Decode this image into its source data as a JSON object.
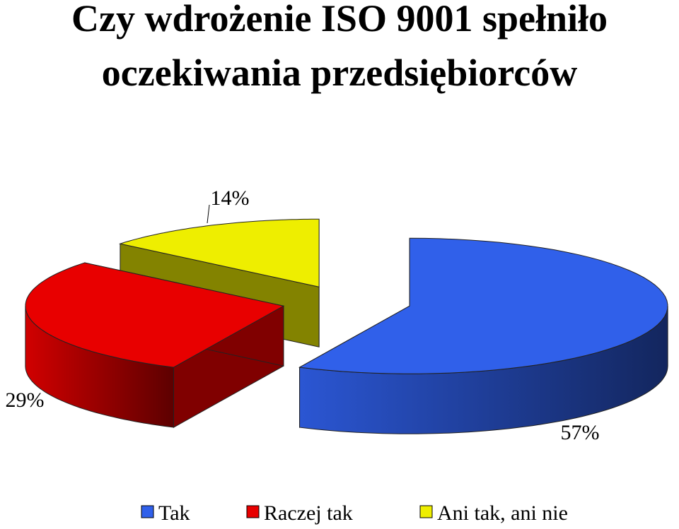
{
  "chart_data": {
    "type": "pie",
    "title": [
      "Czy wdrożenie ISO 9001 spełniło",
      "oczekiwania przedsiębiorców"
    ],
    "categories": [
      "Tak",
      "Raczej tak",
      "Ani tak, ani nie"
    ],
    "values": [
      57,
      29,
      14
    ],
    "value_labels": [
      "57%",
      "29%",
      "14%"
    ],
    "colors": [
      "#3060ea",
      "#e80000",
      "#eeee00"
    ],
    "legend": "bottom"
  }
}
